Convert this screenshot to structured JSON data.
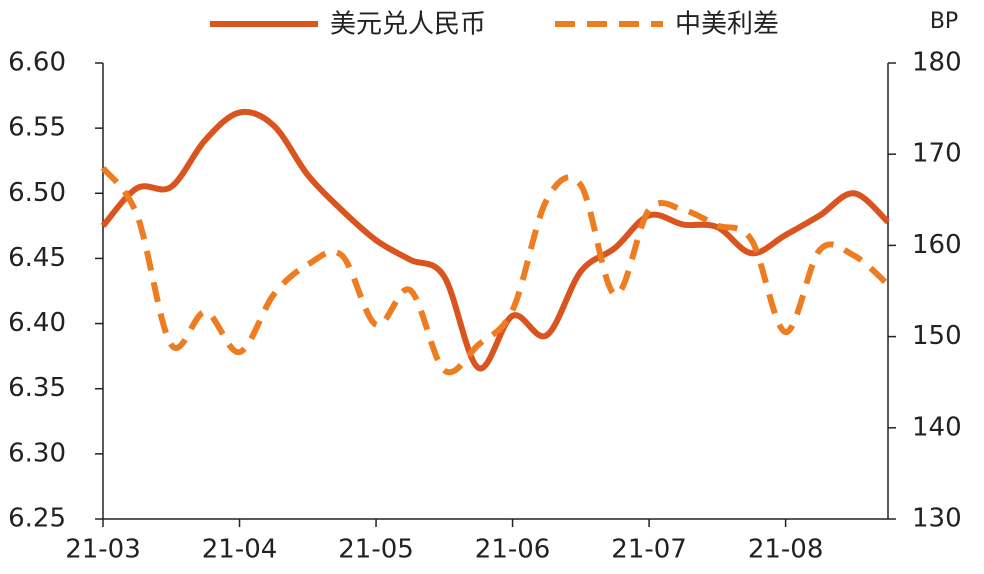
{
  "chart_data": {
    "type": "line",
    "y2_label": "BP",
    "categories": [
      "21-03",
      null,
      null,
      null,
      "21-04",
      null,
      null,
      null,
      "21-05",
      null,
      null,
      null,
      "21-06",
      null,
      null,
      null,
      "21-07",
      null,
      null,
      null,
      "21-08",
      null,
      null,
      null
    ],
    "series": [
      {
        "name": "美元兑人民币",
        "color": "#d9541e",
        "dash": "solid",
        "values": [
          6.475,
          6.504,
          6.505,
          6.541,
          6.562,
          6.552,
          6.514,
          6.487,
          6.464,
          6.449,
          6.436,
          6.366,
          6.406,
          6.391,
          6.44,
          6.458,
          6.483,
          6.476,
          6.474,
          6.454,
          6.468,
          6.483,
          6.5,
          6.478
        ]
      },
      {
        "name": "中美利差",
        "color": "#ee7d22",
        "dash": "dashed",
        "axis": "y2",
        "values": [
          168.5,
          163.3,
          149.1,
          152.7,
          148.3,
          154.6,
          157.9,
          158.9,
          151.3,
          155.1,
          146.3,
          149.1,
          152.9,
          165,
          166.6,
          154.6,
          163.9,
          163.9,
          162.2,
          160.6,
          150.5,
          159.5,
          158.9,
          155.7
        ]
      }
    ],
    "ylim": [
      6.25,
      6.6
    ],
    "yticks": [
      6.25,
      {
        "value": 6.3,
        "label": "6.30"
      },
      6.35,
      {
        "value": 6.4,
        "label": "6.40"
      },
      6.45,
      {
        "value": 6.5,
        "label": "6.50"
      },
      6.55,
      {
        "value": 6.6,
        "label": "6.60"
      }
    ],
    "y2lim": [
      130,
      180
    ],
    "y2ticks": [
      130,
      140,
      150,
      160,
      170,
      180
    ],
    "grid": false
  }
}
